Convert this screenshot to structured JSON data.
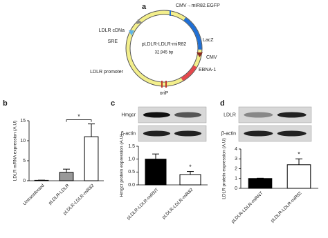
{
  "plasmid": {
    "panel": "a",
    "name": "pLDLR-LDLR-miR82",
    "size": "32,945 bp",
    "labels": [
      "CMV→miR82.EGFP",
      "LacZ",
      "CMV",
      "EBNA-1",
      "oriP",
      "LDLR promoter",
      "SRE",
      "LDLR cDNa"
    ]
  },
  "chart_data": [
    {
      "type": "bar",
      "panel": "b",
      "ylabel": "LDLR mRNA expression (A.U)",
      "categories": [
        "Untransfected",
        "pLDLR-LDLR",
        "pLDLR-LDLR-miR82"
      ],
      "values": [
        0.1,
        2.1,
        11
      ],
      "errors": [
        0.05,
        0.8,
        3.2
      ],
      "colors": [
        "#ffffff",
        "#999999",
        "#ffffff"
      ],
      "ylim": [
        0,
        15
      ],
      "yticks": [
        0,
        5,
        10,
        15
      ],
      "annotation": {
        "text": "*",
        "bracket": true
      }
    },
    {
      "type": "bar",
      "panel": "c",
      "ylabel": "Hmgcr protein expression (A.U)",
      "blot_labels": [
        "Hmgcr",
        "β-actin"
      ],
      "categories": [
        "pLDLR-LDLR-miRNT",
        "pLDLR-LDLR-miR82"
      ],
      "values": [
        1.0,
        0.4
      ],
      "errors": [
        0.2,
        0.12
      ],
      "colors": [
        "#000000",
        "#ffffff"
      ],
      "ylim": [
        0,
        1.5
      ],
      "yticks": [
        {
          "value": 0,
          "label": "0.0"
        },
        {
          "value": 0.5,
          "label": "0.5"
        },
        {
          "value": 1,
          "label": "1.0"
        },
        {
          "value": 1.5,
          "label": "1.5"
        }
      ],
      "annotation": {
        "text": "*",
        "bracket": false
      }
    },
    {
      "type": "bar",
      "panel": "d",
      "ylabel": "LDLR protein expression (A.U)",
      "blot_labels": [
        "LDLR",
        "β-actin"
      ],
      "categories": [
        "pLDLR-LDLR-miRNT",
        "pLDLR-LDLR-miR82"
      ],
      "values": [
        1.0,
        2.4
      ],
      "errors": [
        0.03,
        0.6
      ],
      "colors": [
        "#000000",
        "#ffffff"
      ],
      "ylim": [
        0,
        4
      ],
      "yticks": [
        0,
        1,
        2,
        3,
        4
      ],
      "annotation": {
        "text": "*",
        "bracket": false
      }
    }
  ]
}
